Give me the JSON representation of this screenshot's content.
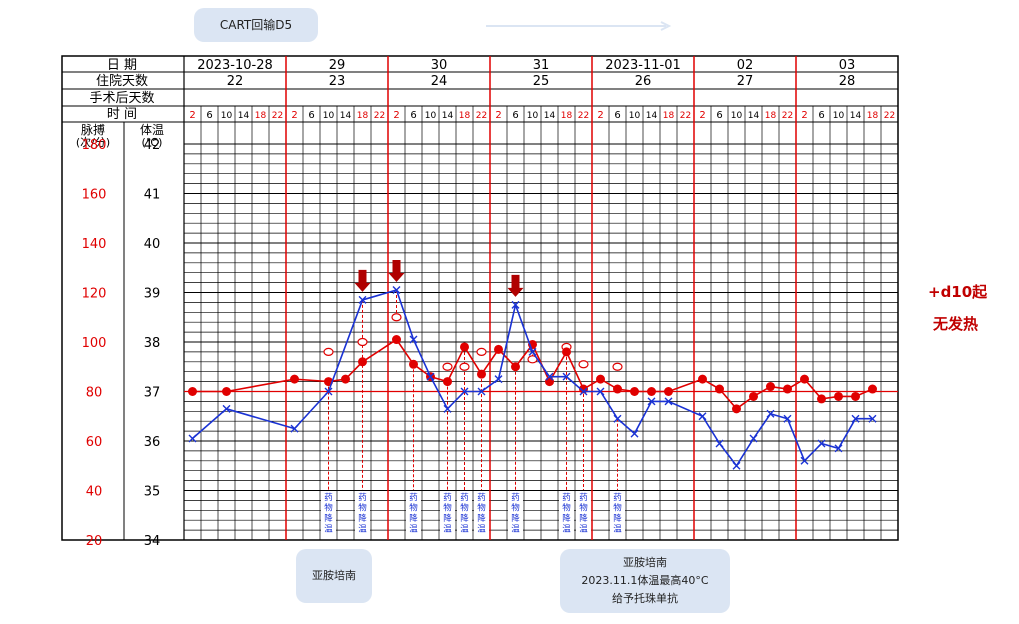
{
  "annotations": {
    "top_bubble": "CART回输D5",
    "left_bubble": "亚胺培南",
    "right_bubble": [
      "亚胺培南",
      "2023.11.1体温最高40°C",
      "给予托珠单抗"
    ],
    "side_note": [
      "+d10起",
      "无发热"
    ],
    "medication_label": [
      "药",
      "物",
      "降",
      "温"
    ]
  },
  "colors": {
    "temperature": "#e00000",
    "pulse": "#1a32d4",
    "grid": "#000000",
    "accent": "#c00000",
    "bubble": "#dbe5f3"
  },
  "chart_data": {
    "type": "line",
    "row_labels": {
      "date": "日  期",
      "hospital_days": "住院天数",
      "post_op_days": "手术后天数",
      "time": "时  间"
    },
    "axis_headers": {
      "pulse": "脉搏\n(次/分)",
      "temperature": "体温\n(℃)"
    },
    "dates": [
      "2023-10-28",
      "29",
      "30",
      "31",
      "2023-11-01",
      "02",
      "03"
    ],
    "hospital_days": [
      "22",
      "23",
      "24",
      "25",
      "26",
      "27",
      "28"
    ],
    "time_slots": [
      "2",
      "6",
      "10",
      "14",
      "18",
      "22"
    ],
    "pulse_ticks": [
      "180",
      "160",
      "140",
      "120",
      "100",
      "80",
      "60",
      "40",
      "20"
    ],
    "temp_ticks": [
      "42",
      "41",
      "40",
      "39",
      "38",
      "37",
      "36",
      "35",
      "34"
    ],
    "ylim_temperature": [
      34,
      42
    ],
    "ylim_pulse": [
      20,
      180
    ],
    "baseline_temperature": 37,
    "series": [
      {
        "marker": "dot",
        "color": "#e00000",
        "points": [
          [
            1,
            37.0
          ],
          [
            3,
            37.0
          ],
          [
            7,
            37.25
          ],
          [
            9,
            37.2
          ],
          [
            10,
            37.25
          ],
          [
            11,
            37.6
          ],
          [
            13,
            38.05
          ],
          [
            14,
            37.55
          ],
          [
            15,
            37.3
          ],
          [
            16,
            37.2
          ],
          [
            17,
            37.9
          ],
          [
            18,
            37.35
          ],
          [
            19,
            37.85
          ],
          [
            20,
            37.5
          ],
          [
            21,
            37.95
          ],
          [
            22,
            37.2
          ],
          [
            23,
            37.8
          ],
          [
            24,
            37.05
          ],
          [
            25,
            37.25
          ],
          [
            26,
            37.05
          ],
          [
            27,
            37.0
          ],
          [
            28,
            37.0
          ],
          [
            29,
            37.0
          ],
          [
            31,
            37.25
          ],
          [
            32,
            37.05
          ],
          [
            33,
            36.65
          ],
          [
            34,
            36.9
          ],
          [
            35,
            37.1
          ],
          [
            36,
            37.05
          ],
          [
            37,
            37.25
          ],
          [
            38,
            36.85
          ],
          [
            39,
            36.9
          ],
          [
            40,
            36.9
          ],
          [
            41,
            37.05
          ]
        ]
      },
      {
        "marker": "x",
        "color": "#1a32d4",
        "points": [
          [
            1,
            36.05
          ],
          [
            3,
            36.65
          ],
          [
            7,
            36.25
          ],
          [
            9,
            37.0
          ],
          [
            11,
            38.85
          ],
          [
            13,
            39.05
          ],
          [
            14,
            38.05
          ],
          [
            15,
            37.3
          ],
          [
            16,
            36.65
          ],
          [
            17,
            37.0
          ],
          [
            18,
            37.0
          ],
          [
            19,
            37.25
          ],
          [
            20,
            38.75
          ],
          [
            21,
            37.8
          ],
          [
            22,
            37.3
          ],
          [
            23,
            37.3
          ],
          [
            24,
            37.0
          ],
          [
            25,
            37.0
          ],
          [
            26,
            36.45
          ],
          [
            27,
            36.15
          ],
          [
            28,
            36.8
          ],
          [
            29,
            36.8
          ],
          [
            31,
            36.5
          ],
          [
            32,
            35.95
          ],
          [
            33,
            35.5
          ],
          [
            34,
            36.05
          ],
          [
            35,
            36.55
          ],
          [
            36,
            36.45
          ],
          [
            37,
            35.6
          ],
          [
            38,
            35.95
          ],
          [
            39,
            35.85
          ],
          [
            40,
            36.45
          ],
          [
            41,
            36.45
          ]
        ]
      }
    ],
    "open_circles": [
      {
        "slot": 9,
        "temp": 37.8,
        "from": 37.2
      },
      {
        "slot": 11,
        "temp": 38.0,
        "from": 38.85
      },
      {
        "slot": 13,
        "temp": 38.5,
        "from": 39.05
      },
      {
        "slot": 16,
        "temp": 37.5,
        "from": 37.2
      },
      {
        "slot": 17,
        "temp": 37.5,
        "from": 37.9
      },
      {
        "slot": 18,
        "temp": 37.8,
        "from": 37.35
      },
      {
        "slot": 21,
        "temp": 37.65,
        "from": 37.95
      },
      {
        "slot": 23,
        "temp": 37.9,
        "from": 37.8
      },
      {
        "slot": 24,
        "temp": 37.55,
        "from": 37.05
      },
      {
        "slot": 26,
        "temp": 37.5,
        "from": 36.45
      }
    ],
    "red_arrows": [
      11,
      13,
      20
    ],
    "medication_slots": [
      9,
      11,
      14,
      16,
      17,
      18,
      20,
      23,
      24,
      26
    ]
  }
}
